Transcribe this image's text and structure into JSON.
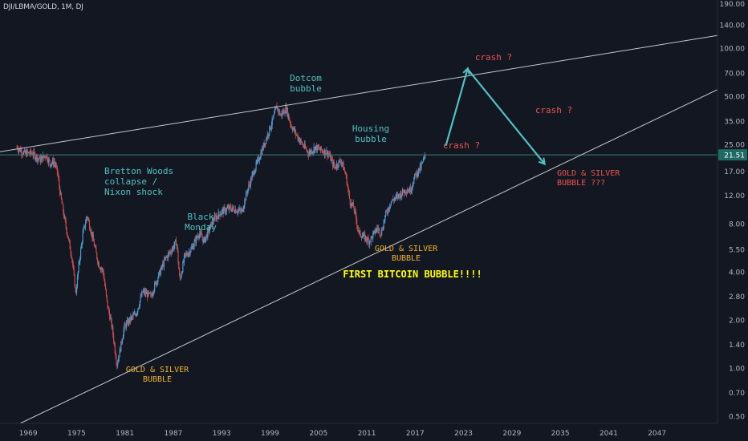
{
  "symbol": "DJI/LBMA/GOLD, 1M, DJ",
  "colors": {
    "bg": "#131722",
    "text": "#d1d4dc",
    "axis_text": "#b2b5be",
    "up": "#4a9bd1",
    "down": "#c84a4a",
    "teal": "#4dc3c3",
    "orange": "#f0b22e",
    "yellow": "#ffff00",
    "red": "#ef5350",
    "line": "#c8c8c8",
    "hline": "#3f7f7a"
  },
  "chart_data": {
    "type": "candlestick",
    "title": "DJI/LBMA/GOLD, 1M, DJ",
    "log_scale": true,
    "ylim": [
      0.45,
      200
    ],
    "xlim": [
      1965.5,
      2054.5
    ],
    "grid": false,
    "x_tick_labels": [
      "1969",
      "1975",
      "1981",
      "1987",
      "1993",
      "1999",
      "2005",
      "2011",
      "2017",
      "2023",
      "2029",
      "2035",
      "2041",
      "2047"
    ],
    "y_tick_labels": [
      "190.00",
      "140.00",
      "100.00",
      "70.00",
      "50.00",
      "35.00",
      "25.00",
      "17.00",
      "12.00",
      "8.00",
      "5.50",
      "4.00",
      "2.80",
      "2.00",
      "1.40",
      "1.00",
      "0.70",
      "0.50"
    ],
    "last_price_label": "21.51",
    "last_price": 21.51,
    "price_path": [
      [
        1967.6,
        24
      ],
      [
        1968.5,
        22
      ],
      [
        1969.5,
        22
      ],
      [
        1970.5,
        20
      ],
      [
        1971.2,
        21.5
      ],
      [
        1971.7,
        19
      ],
      [
        1972.2,
        19.5
      ],
      [
        1972.6,
        17
      ],
      [
        1973.0,
        12
      ],
      [
        1973.6,
        8
      ],
      [
        1974.4,
        5
      ],
      [
        1974.9,
        2.9
      ],
      [
        1975.3,
        4.5
      ],
      [
        1975.8,
        7
      ],
      [
        1976.3,
        9
      ],
      [
        1977.0,
        6.5
      ],
      [
        1977.7,
        4.5
      ],
      [
        1978.3,
        4
      ],
      [
        1978.8,
        2.5
      ],
      [
        1979.4,
        1.8
      ],
      [
        1980.0,
        1.05
      ],
      [
        1980.4,
        1.3
      ],
      [
        1980.9,
        1.8
      ],
      [
        1981.6,
        2.0
      ],
      [
        1982.4,
        2.2
      ],
      [
        1983.2,
        3.0
      ],
      [
        1984.2,
        2.8
      ],
      [
        1985.0,
        3.6
      ],
      [
        1986.0,
        4.8
      ],
      [
        1986.8,
        5.5
      ],
      [
        1987.4,
        6.2
      ],
      [
        1987.8,
        3.5
      ],
      [
        1988.4,
        5.0
      ],
      [
        1989.2,
        5.5
      ],
      [
        1990.2,
        7.0
      ],
      [
        1990.8,
        6.2
      ],
      [
        1992.0,
        8.5
      ],
      [
        1993.0,
        9.5
      ],
      [
        1994.0,
        10.0
      ],
      [
        1995.5,
        9.5
      ],
      [
        1996.2,
        13
      ],
      [
        1997.0,
        17
      ],
      [
        1998.0,
        23
      ],
      [
        1998.6,
        28
      ],
      [
        1999.3,
        35
      ],
      [
        1999.8,
        43
      ],
      [
        2000.3,
        38
      ],
      [
        2001.0,
        42
      ],
      [
        2001.6,
        33
      ],
      [
        2002.4,
        28
      ],
      [
        2003.0,
        25
      ],
      [
        2003.8,
        22
      ],
      [
        2004.6,
        24
      ],
      [
        2005.4,
        23
      ],
      [
        2006.2,
        22
      ],
      [
        2007.0,
        18
      ],
      [
        2007.8,
        20
      ],
      [
        2008.4,
        16
      ],
      [
        2008.9,
        11
      ],
      [
        2009.4,
        10
      ],
      [
        2010.0,
        7
      ],
      [
        2010.8,
        6.5
      ],
      [
        2011.3,
        6.2
      ],
      [
        2011.8,
        6.8
      ],
      [
        2012.3,
        7.5
      ],
      [
        2012.8,
        7
      ],
      [
        2013.3,
        9
      ],
      [
        2014.0,
        11
      ],
      [
        2015.0,
        12
      ],
      [
        2015.8,
        13
      ],
      [
        2016.4,
        13
      ],
      [
        2017.0,
        16
      ],
      [
        2017.7,
        18
      ],
      [
        2018.3,
        21.51
      ]
    ],
    "annotations": [
      {
        "text": [
          "Bretton Woods",
          "collapse /",
          "Nixon shock"
        ],
        "color": "teal"
      },
      {
        "text": [
          "Black",
          "Monday"
        ],
        "color": "teal"
      },
      {
        "text": [
          "Dotcom",
          "bubble"
        ],
        "color": "teal"
      },
      {
        "text": [
          "Housing",
          "bubble"
        ],
        "color": "teal"
      },
      {
        "text": [
          "GOLD & SILVER",
          "BUBBLE"
        ],
        "color": "orange"
      },
      {
        "text": [
          "GOLD & SILVER",
          "BUBBLE"
        ],
        "color": "orange"
      },
      {
        "text": [
          "FIRST BITCOIN BUBBLE!!!!"
        ],
        "color": "yellow"
      },
      {
        "text": [
          "crash ?"
        ],
        "color": "red"
      },
      {
        "text": [
          "crash ?"
        ],
        "color": "red"
      },
      {
        "text": [
          "crash ?"
        ],
        "color": "red"
      },
      {
        "text": [
          "GOLD & SILVER",
          "BUBBLE ???"
        ],
        "color": "red"
      }
    ],
    "trendlines": [
      {
        "name": "upper-resistance-line",
        "points": [
          [
            1965.5,
            22.5
          ],
          [
            2054.5,
            120
          ]
        ]
      },
      {
        "name": "lower-support-line",
        "points": [
          [
            1968.0,
            0.45
          ],
          [
            2054.5,
            55
          ]
        ]
      }
    ],
    "projection_arrows": [
      {
        "name": "projection-arrow-up",
        "from": [
          2020.8,
          24.5
        ],
        "to": [
          2023.5,
          74
        ]
      },
      {
        "name": "projection-arrow-down",
        "from": [
          2023.5,
          74
        ],
        "to": [
          2033.0,
          19
        ]
      }
    ]
  }
}
